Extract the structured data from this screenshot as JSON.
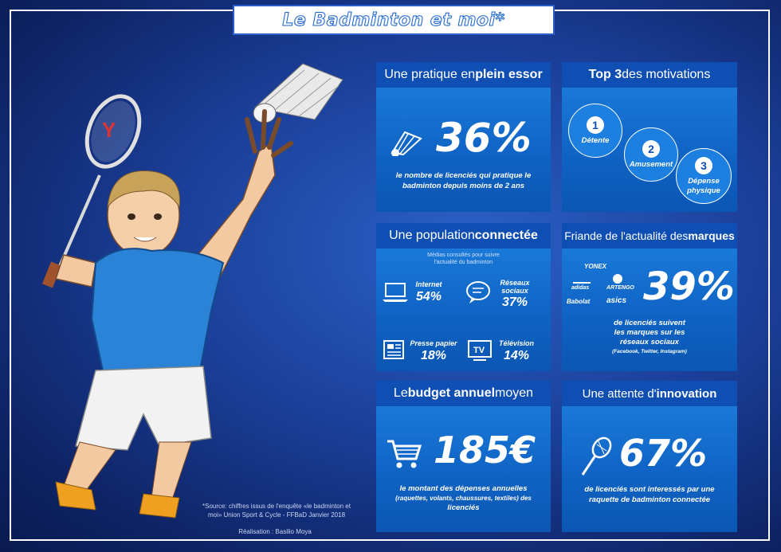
{
  "title": "Le Badminton et moi*",
  "panels": {
    "pratique": {
      "title_pre": "Une pratique en ",
      "title_bold": "plein essor",
      "value": "36%",
      "caption_l1": "le nombre de licenciés qui pratique le",
      "caption_l2": "badminton depuis moins de 2 ans",
      "icon": "shuttlecock-icon"
    },
    "motivations": {
      "title_bold": "Top 3",
      "title_post": " des motivations",
      "items": [
        {
          "num": "1",
          "label": "Détente"
        },
        {
          "num": "2",
          "label": "Amusement"
        },
        {
          "num": "3",
          "label_l1": "Dépense",
          "label_l2": "physique"
        }
      ]
    },
    "population": {
      "title_pre": "Une population ",
      "title_bold": "connectée",
      "subtitle_l1": "Médias consultés pour suivre",
      "subtitle_l2": "l'actualité du badminton",
      "media": [
        {
          "label": "Internet",
          "value": "54%",
          "icon": "laptop-icon"
        },
        {
          "label_l1": "Réseaux",
          "label_l2": "sociaux",
          "value": "37%",
          "icon": "chat-bubble-icon"
        },
        {
          "label": "Presse papier",
          "value": "18%",
          "icon": "newspaper-icon"
        },
        {
          "label": "Télévision",
          "value": "14%",
          "icon": "tv-icon"
        }
      ]
    },
    "marques": {
      "title_pre": "Friande de l'actualité des ",
      "title_bold": "marques",
      "value": "39%",
      "brands": [
        "YONEX",
        "adidas",
        "ARTENGO",
        "Babolat",
        "asics"
      ],
      "caption_l1": "de licenciés suivent",
      "caption_l2": "les marques sur les",
      "caption_l3": "réseaux sociaux",
      "caption_small": "(Facebook, Twitter, Instagram)"
    },
    "budget": {
      "title_pre": "Le ",
      "title_bold": "budget annuel",
      "title_post": " moyen",
      "value": "185€",
      "caption_l1": "le montant des dépenses annuelles",
      "caption_l2": "(raquettes, volants, chaussures, textiles) des",
      "caption_l3": "licenciés",
      "icon": "shopping-cart-icon"
    },
    "innovation": {
      "title_pre": "Une attente d'",
      "title_bold": "innovation",
      "value": "67%",
      "caption_l1": "de licenciés sont interessés par une",
      "caption_l2": "raquette de badminton connectée",
      "icon": "racket-icon"
    }
  },
  "source_l1": "*Source: chiffres issus de l'enquête «le badminton et",
  "source_l2": "moi» Union Sport & Cycle - FFBaD Janvier 2018",
  "credit": "Réalisation : Basilio Moya",
  "colors": {
    "accent": "#1a63d1",
    "panel_head": "#0f4fb3",
    "panel_body": "#1a79d8"
  }
}
